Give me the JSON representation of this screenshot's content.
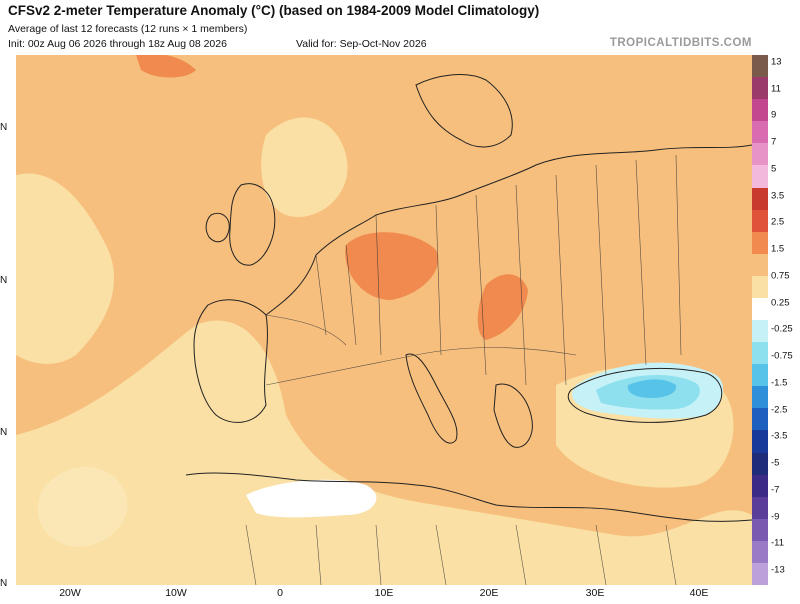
{
  "header": {
    "title": "CFSv2 2-meter Temperature Anomaly (°C) (based on 1984-2009 Model Climatology)",
    "subtitle": "Average of last 12 forecasts (12 runs × 1 members)",
    "init": "Init: 00z Aug 06 2026 through 18z Aug 08 2026",
    "valid": "Valid for: Sep-Oct-Nov 2026",
    "brand": "TROPICALTIDBITS.COM"
  },
  "axes": {
    "lat_labels": [
      "N",
      "N",
      "N",
      "N"
    ],
    "lon_labels": [
      "20W",
      "10W",
      "0",
      "10E",
      "20E",
      "30E",
      "40E"
    ]
  },
  "colorbar": {
    "labels": [
      "13",
      "11",
      "9",
      "7",
      "5",
      "3.5",
      "2.5",
      "1.5",
      "0.75",
      "0.25",
      "-0.25",
      "-0.75",
      "-1.5",
      "-2.5",
      "-3.5",
      "-5",
      "-7",
      "-9",
      "-11",
      "-13"
    ],
    "colors": [
      "#7a5a4a",
      "#9a3a6a",
      "#c2478f",
      "#d96bb0",
      "#e893c7",
      "#f2b9dc",
      "#c93a2e",
      "#e0533a",
      "#f08a4e",
      "#f6bf7d",
      "#fae0a4",
      "#ffffff",
      "#c6f2f7",
      "#8fe0ef",
      "#58c3e8",
      "#2f8fd8",
      "#1c5fbf",
      "#16399a",
      "#1f2c78",
      "#3b2a86",
      "#5a3c99",
      "#7a5ab0",
      "#9a7ac6",
      "#bba0da"
    ]
  },
  "legend_colors": {
    "ocean_base": "#f6bf7d",
    "mild_warm": "#fae0a4",
    "strong_warm": "#f08a4e",
    "neutral": "#ffffff",
    "cool_light": "#8fe0ef",
    "cool_mid": "#58c3e8"
  }
}
